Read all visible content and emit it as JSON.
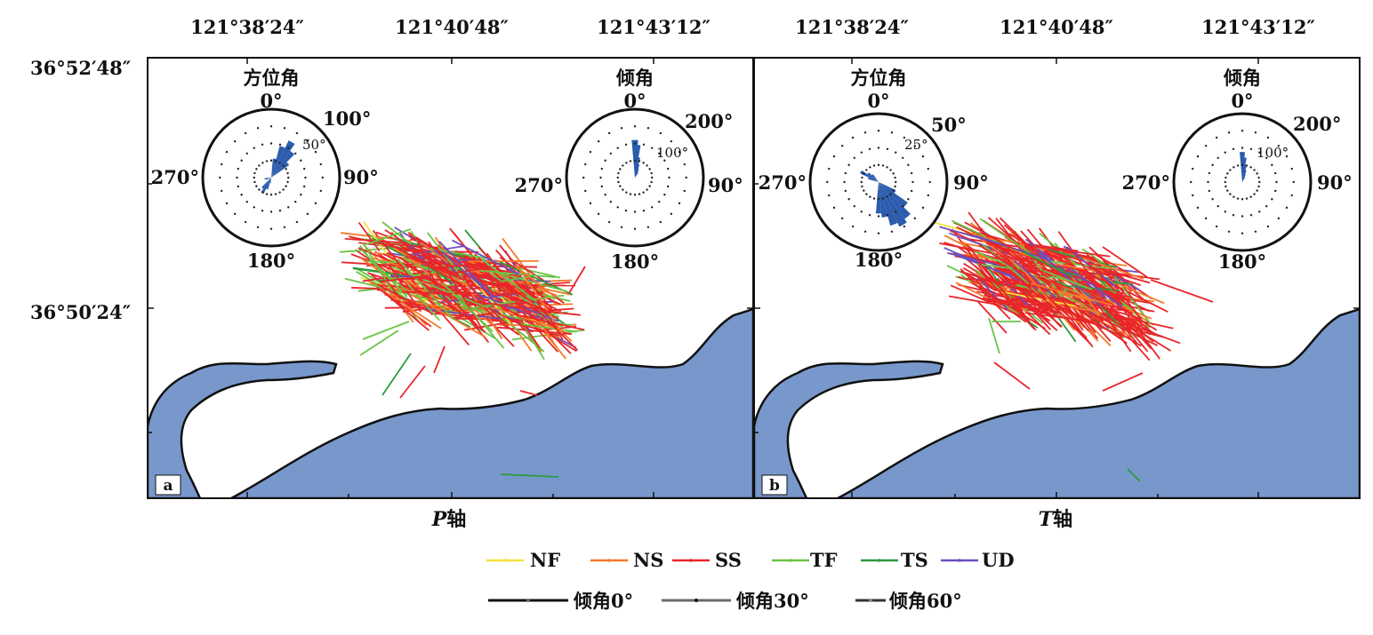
{
  "figure": {
    "lat_labels": [
      "36°52′48″",
      "36°50′24″"
    ],
    "lon_labels": [
      "121°38′24″",
      "121°40′48″",
      "121°43′12″"
    ]
  },
  "panels": [
    {
      "id": "a",
      "letter": "a",
      "caption_axis": "P",
      "caption_suffix": "轴",
      "roses": [
        {
          "name": "azimuth",
          "title": "方位角",
          "top": "0°",
          "right": "90°",
          "bottom": "180°",
          "left": "270°",
          "scale_outer": "100°",
          "scale_inner": "50°",
          "petals": [
            [
              10,
              28
            ],
            [
              20,
              48
            ],
            [
              30,
              60
            ],
            [
              40,
              48
            ],
            [
              50,
              32
            ],
            [
              200,
              18
            ],
            [
              210,
              26
            ],
            [
              220,
              20
            ],
            [
              190,
              8
            ],
            [
              250,
              8
            ],
            [
              260,
              10
            ]
          ]
        },
        {
          "name": "dip",
          "title": "倾角",
          "top": "0°",
          "right": "90°",
          "bottom": "180°",
          "left": "270°",
          "scale_outer": "200°",
          "scale_inner": "100°",
          "petals": [
            [
              0,
              55
            ],
            [
              5,
              48
            ],
            [
              10,
              30
            ],
            [
              15,
              20
            ],
            [
              20,
              14
            ],
            [
              25,
              10
            ],
            [
              30,
              8
            ]
          ]
        }
      ]
    },
    {
      "id": "b",
      "letter": "b",
      "caption_axis": "T",
      "caption_suffix": "轴",
      "roses": [
        {
          "name": "azimuth",
          "title": "方位角",
          "top": "0°",
          "right": "90°",
          "bottom": "180°",
          "left": "270°",
          "scale_outer": "50°",
          "scale_inner": "25°",
          "petals": [
            [
              130,
              52
            ],
            [
              140,
              66
            ],
            [
              150,
              72
            ],
            [
              160,
              66
            ],
            [
              170,
              52
            ],
            [
              180,
              46
            ],
            [
              120,
              28
            ],
            [
              300,
              30
            ],
            [
              310,
              20
            ],
            [
              320,
              14
            ],
            [
              290,
              16
            ]
          ]
        },
        {
          "name": "dip",
          "title": "倾角",
          "top": "0°",
          "right": "90°",
          "bottom": "180°",
          "left": "270°",
          "scale_outer": "200°",
          "scale_inner": "100°",
          "petals": [
            [
              0,
              44
            ],
            [
              5,
              36
            ],
            [
              10,
              26
            ],
            [
              15,
              18
            ],
            [
              20,
              12
            ],
            [
              25,
              8
            ]
          ]
        }
      ]
    }
  ],
  "legend": {
    "mechanisms": [
      {
        "label": "NF",
        "color": "#f2e339"
      },
      {
        "label": "NS",
        "color": "#f47a2a"
      },
      {
        "label": "SS",
        "color": "#e8262a"
      },
      {
        "label": "TF",
        "color": "#6ac444"
      },
      {
        "label": "TS",
        "color": "#2e9a3e"
      },
      {
        "label": "UD",
        "color": "#6a4fbf"
      }
    ],
    "dips": [
      {
        "label": "倾角0°",
        "color": "#111111"
      },
      {
        "label": "倾角30°",
        "color": "#6b6b6b"
      },
      {
        "label": "倾角60°",
        "color": "#333333"
      }
    ]
  },
  "colors": {
    "sea": "#7898cc",
    "land": "#ffffff",
    "rose_fill": "#2b5cad"
  }
}
